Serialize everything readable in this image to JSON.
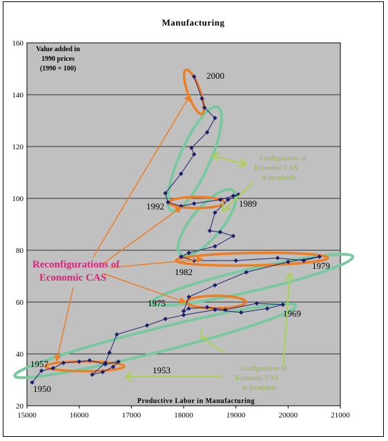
{
  "chart_data": {
    "type": "scatter",
    "title": "Manufacturing",
    "xlabel": "Productive Labor in Manufacturing",
    "ylabel_lines": [
      "Value added in",
      "1990 prices",
      "(1990 = 100)"
    ],
    "xlim": [
      15000,
      21000
    ],
    "ylim": [
      20,
      160
    ],
    "xticks": [
      "15000",
      "16000",
      "17000",
      "18000",
      "19000",
      "20000",
      "21000"
    ],
    "yticks": [
      "20",
      "40",
      "60",
      "80",
      "100",
      "120",
      "140",
      "160"
    ],
    "grid": true,
    "series": [
      {
        "points": [
          [
            15100,
            29
          ],
          [
            15280,
            33.5
          ],
          [
            15500,
            34.5
          ],
          [
            15700,
            36.5
          ],
          [
            16000,
            37
          ],
          [
            16200,
            37.5
          ],
          [
            16500,
            36
          ],
          [
            16750,
            37
          ],
          [
            16650,
            35
          ],
          [
            16450,
            33
          ],
          [
            16250,
            32
          ],
          [
            16500,
            36.5
          ],
          [
            16580,
            40.5
          ],
          [
            16720,
            47.5
          ],
          [
            17300,
            51
          ],
          [
            17650,
            53.5
          ],
          [
            18000,
            55
          ],
          [
            18600,
            57
          ],
          [
            19100,
            56
          ],
          [
            19600,
            57.5
          ],
          [
            19900,
            59
          ],
          [
            19400,
            59.5
          ],
          [
            18800,
            57
          ],
          [
            18450,
            58
          ],
          [
            18100,
            57.5
          ],
          [
            18000,
            56.5
          ],
          [
            18100,
            62
          ],
          [
            18600,
            66.5
          ],
          [
            19200,
            71.5
          ],
          [
            20000,
            75.5
          ],
          [
            20600,
            77.5
          ],
          [
            20300,
            76
          ],
          [
            19800,
            77
          ],
          [
            19000,
            76
          ],
          [
            18200,
            76
          ],
          [
            17950,
            77.5
          ],
          [
            18100,
            79
          ],
          [
            18600,
            81.5
          ],
          [
            18950,
            85.5
          ],
          [
            18700,
            87
          ],
          [
            18500,
            87.5
          ],
          [
            18600,
            94.5
          ],
          [
            18850,
            99.5
          ],
          [
            19050,
            101.5
          ],
          [
            18950,
            101
          ],
          [
            18700,
            99.5
          ],
          [
            18200,
            98
          ],
          [
            17950,
            97
          ],
          [
            17700,
            98.5
          ],
          [
            17650,
            102
          ],
          [
            17950,
            109.5
          ],
          [
            18200,
            117
          ],
          [
            18150,
            119.5
          ],
          [
            18450,
            125.5
          ],
          [
            18600,
            131
          ],
          [
            18400,
            135
          ],
          [
            18350,
            138.5
          ],
          [
            18200,
            147
          ]
        ]
      }
    ],
    "year_labels": [
      "2000",
      "1992",
      "1989",
      "1982",
      "1979",
      "1975",
      "1969",
      "1953",
      "1950",
      "1957"
    ]
  },
  "annotations": {
    "reconfig": [
      "Reconfigurations  of",
      "Economic CAS"
    ],
    "config_top": [
      "Configuration  of",
      "Economic CAS",
      "is  invariable."
    ],
    "config_bottom": [
      "Configuration  of",
      "Economic CAS",
      "is  invariable."
    ]
  },
  "colors": {
    "plot_bg": "#c0c0c0",
    "line": "#1e1e6e",
    "marker": "#1e1e6e",
    "orange": "#ef7d22",
    "teal": "#78c8a0",
    "green_arrow": "#a8d34d",
    "pink_text": "#d6247a"
  }
}
